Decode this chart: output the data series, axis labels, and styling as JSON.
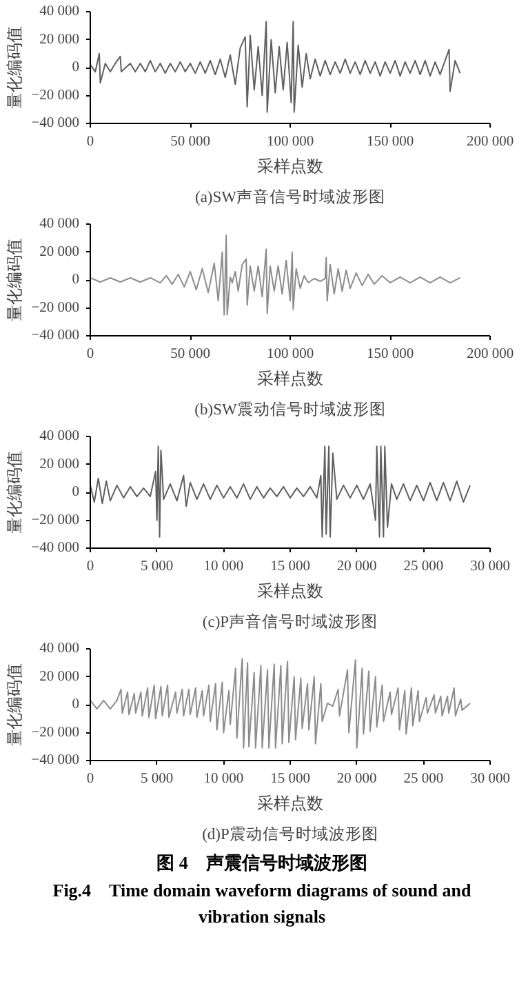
{
  "chart_data": [
    {
      "type": "line",
      "title": "(a)SW声音信号时域波形图",
      "xlabel": "采样点数",
      "ylabel": "量化编码值",
      "grid": false,
      "xlim": [
        0,
        200000
      ],
      "xticks": [
        0,
        {
          "value": 50000,
          "label": "50 000"
        },
        {
          "value": 100000,
          "label": "100 000"
        },
        {
          "value": 150000,
          "label": "150 000"
        },
        {
          "value": 200000,
          "label": "200 000"
        }
      ],
      "ylim": [
        -40000,
        40000
      ],
      "yticks": [
        {
          "value": -40000,
          "label": "−40 000"
        },
        {
          "value": -20000,
          "label": "−20 000"
        },
        0,
        {
          "value": 20000,
          "label": "20 000"
        },
        {
          "value": 40000,
          "label": "40 000"
        }
      ],
      "series": [
        {
          "color": "#5f5f5f",
          "x": [
            0,
            2500,
            4500,
            5000,
            7500,
            10000,
            12500,
            15000,
            15500,
            20000,
            22500,
            25000,
            27500,
            30000,
            32500,
            35000,
            37500,
            40000,
            42500,
            45000,
            47500,
            50000,
            52500,
            55000,
            57500,
            60000,
            62500,
            65000,
            67500,
            70000,
            72500,
            75000,
            77500,
            78500,
            80000,
            82000,
            84000,
            86000,
            88000,
            88500,
            90500,
            92500,
            94500,
            96500,
            98500,
            100500,
            101500,
            102000,
            104000,
            106000,
            108000,
            110000,
            112500,
            115000,
            117500,
            120000,
            122500,
            125000,
            127500,
            130000,
            132500,
            135000,
            137500,
            140000,
            142500,
            145000,
            147500,
            150000,
            152500,
            155000,
            157500,
            160000,
            162500,
            165000,
            167500,
            170000,
            172500,
            175000,
            177500,
            179500,
            180000,
            182500,
            185000
          ],
          "values": [
            2000,
            -3000,
            10000,
            -11000,
            3000,
            -3000,
            3000,
            8000,
            -3000,
            3000,
            -3000,
            3000,
            -3000,
            5000,
            -3000,
            3000,
            -4000,
            3000,
            -3000,
            4000,
            -3000,
            3000,
            -4000,
            4000,
            -4000,
            5000,
            -5000,
            6000,
            -7000,
            9000,
            -12000,
            14000,
            22000,
            -28000,
            23000,
            -16000,
            15000,
            -20000,
            33000,
            -32000,
            20000,
            -18000,
            15000,
            -16000,
            18000,
            -25000,
            33000,
            -32000,
            16000,
            -14000,
            10000,
            -8000,
            6000,
            -6000,
            5000,
            -5000,
            4000,
            -4000,
            6000,
            -4000,
            4000,
            -5000,
            5000,
            -4000,
            4000,
            -6000,
            4000,
            -4000,
            5000,
            -6000,
            4000,
            -4000,
            5000,
            -5000,
            5000,
            -6000,
            4000,
            -5000,
            5000,
            13000,
            -17000,
            5000,
            -4000
          ]
        }
      ]
    },
    {
      "type": "line",
      "title": "(b)SW震动信号时域波形图",
      "xlabel": "采样点数",
      "ylabel": "量化编码值",
      "grid": false,
      "xlim": [
        0,
        200000
      ],
      "xticks": [
        0,
        {
          "value": 50000,
          "label": "50 000"
        },
        {
          "value": 100000,
          "label": "100 000"
        },
        {
          "value": 150000,
          "label": "150 000"
        },
        {
          "value": 200000,
          "label": "200 000"
        }
      ],
      "ylim": [
        -40000,
        40000
      ],
      "yticks": [
        {
          "value": -40000,
          "label": "−40 000"
        },
        {
          "value": -20000,
          "label": "−20 000"
        },
        0,
        {
          "value": 20000,
          "label": "20 000"
        },
        {
          "value": 40000,
          "label": "40 000"
        }
      ],
      "series": [
        {
          "color": "#8c8c8c",
          "x": [
            0,
            5000,
            10000,
            15000,
            20000,
            25000,
            30000,
            35000,
            38000,
            41000,
            44000,
            47000,
            50000,
            53000,
            56000,
            59000,
            62000,
            64000,
            66000,
            67000,
            68000,
            68500,
            70000,
            71000,
            72500,
            74000,
            76000,
            78000,
            78500,
            80000,
            82000,
            84000,
            86000,
            88000,
            88500,
            90000,
            92000,
            94000,
            96000,
            98000,
            100000,
            101000,
            101500,
            103000,
            105000,
            107000,
            109000,
            112000,
            115000,
            117500,
            118000,
            118500,
            120000,
            122000,
            124000,
            126000,
            128000,
            130000,
            133000,
            136000,
            139000,
            142000,
            146000,
            150000,
            155000,
            160000,
            165000,
            170000,
            175000,
            180000,
            185000
          ],
          "values": [
            1500,
            -1500,
            1500,
            -1500,
            1500,
            -1500,
            1500,
            -2000,
            3000,
            -3000,
            4000,
            -5000,
            6000,
            -7000,
            8000,
            -9000,
            12000,
            -15000,
            20000,
            -25000,
            32000,
            -25000,
            2000,
            -2000,
            6000,
            -8000,
            11000,
            15000,
            -18000,
            10000,
            -8000,
            10000,
            -12000,
            22000,
            -24000,
            10000,
            -8000,
            10000,
            -10000,
            14000,
            -15000,
            20000,
            -21000,
            8000,
            -6000,
            3000,
            -2000,
            1000,
            -1000,
            1000,
            16000,
            -15000,
            11000,
            -10000,
            8000,
            -8000,
            7000,
            -6000,
            5000,
            -4000,
            4000,
            -3000,
            3000,
            -2000,
            2000,
            -2000,
            2000,
            -2000,
            2000,
            -2000,
            1500
          ]
        }
      ]
    },
    {
      "type": "line",
      "title": "(c)P声音信号时域波形图",
      "xlabel": "采样点数",
      "ylabel": "量化编码值",
      "grid": false,
      "xlim": [
        0,
        30000
      ],
      "xticks": [
        0,
        {
          "value": 5000,
          "label": "5 000"
        },
        {
          "value": 10000,
          "label": "10 000"
        },
        {
          "value": 15000,
          "label": "15 000"
        },
        {
          "value": 20000,
          "label": "20 000"
        },
        {
          "value": 25000,
          "label": "25 000"
        },
        {
          "value": 30000,
          "label": "30 000"
        }
      ],
      "ylim": [
        -40000,
        40000
      ],
      "yticks": [
        {
          "value": -40000,
          "label": "−40 000"
        },
        {
          "value": -20000,
          "label": "−20 000"
        },
        0,
        {
          "value": 20000,
          "label": "20 000"
        },
        {
          "value": 40000,
          "label": "40 000"
        }
      ],
      "series": [
        {
          "color": "#5f5f5f",
          "x": [
            0,
            300,
            600,
            900,
            1200,
            1500,
            2000,
            2500,
            3000,
            3500,
            4000,
            4500,
            4900,
            5000,
            5100,
            5200,
            5300,
            5500,
            6000,
            6500,
            7000,
            7200,
            7500,
            8000,
            8500,
            9000,
            9500,
            10000,
            10500,
            11000,
            11500,
            12000,
            12500,
            13000,
            13500,
            14000,
            14500,
            15000,
            15500,
            16000,
            16500,
            17000,
            17300,
            17400,
            17600,
            17700,
            17900,
            18000,
            18200,
            18500,
            19000,
            19500,
            20000,
            20500,
            21000,
            21400,
            21500,
            21700,
            21800,
            22000,
            22100,
            22300,
            22600,
            23000,
            23500,
            24000,
            24500,
            25000,
            25500,
            26000,
            26500,
            27000,
            27500,
            28000,
            28500
          ],
          "values": [
            5000,
            -7000,
            10000,
            -8000,
            8000,
            -6000,
            5000,
            -4000,
            4000,
            -3000,
            3000,
            -3000,
            15000,
            -20000,
            33000,
            -32000,
            30000,
            -5000,
            6000,
            -6000,
            12000,
            -10000,
            7000,
            -5000,
            6000,
            -5000,
            5000,
            -4000,
            4000,
            -4000,
            6000,
            -5000,
            4000,
            -4000,
            3000,
            -3000,
            4000,
            -4000,
            3000,
            -3000,
            4000,
            -4000,
            12000,
            -32000,
            33000,
            -30000,
            33000,
            -32000,
            28000,
            -5000,
            5000,
            -4000,
            5000,
            -5000,
            6000,
            -20000,
            33000,
            -32000,
            33000,
            -32000,
            33000,
            -25000,
            6000,
            -5000,
            6000,
            -6000,
            5000,
            -6000,
            7000,
            -6000,
            7000,
            -6000,
            8000,
            -7000,
            5000
          ]
        }
      ]
    },
    {
      "type": "line",
      "title": "(d)P震动信号时域波形图",
      "xlabel": "采样点数",
      "ylabel": "量化编码值",
      "grid": false,
      "annotations": [
        "图 4　声震信号时域波形图",
        "Fig.4　Time domain waveform diagrams of sound and vibration signals"
      ],
      "xlim": [
        0,
        30000
      ],
      "xticks": [
        0,
        {
          "value": 5000,
          "label": "5 000"
        },
        {
          "value": 10000,
          "label": "10 000"
        },
        {
          "value": 15000,
          "label": "15 000"
        },
        {
          "value": 20000,
          "label": "20 000"
        },
        {
          "value": 25000,
          "label": "25 000"
        },
        {
          "value": 30000,
          "label": "30 000"
        }
      ],
      "ylim": [
        -40000,
        40000
      ],
      "yticks": [
        {
          "value": -40000,
          "label": "−40 000"
        },
        {
          "value": -20000,
          "label": "−20 000"
        },
        0,
        {
          "value": 20000,
          "label": "20 000"
        },
        {
          "value": 40000,
          "label": "40 000"
        }
      ],
      "series": [
        {
          "color": "#8c8c8c",
          "x": [
            0,
            500,
            1000,
            1500,
            2000,
            2300,
            2400,
            2800,
            2900,
            3300,
            3400,
            3800,
            3900,
            4300,
            4400,
            4800,
            4900,
            5300,
            5400,
            5800,
            5900,
            6400,
            6500,
            6900,
            7000,
            7400,
            7500,
            7900,
            8000,
            8400,
            8500,
            8900,
            9000,
            9400,
            9500,
            9900,
            10000,
            10400,
            10500,
            10900,
            11000,
            11400,
            11500,
            11800,
            11900,
            12300,
            12400,
            12800,
            12900,
            13300,
            13400,
            13800,
            13900,
            14300,
            14400,
            14800,
            14900,
            15300,
            15400,
            15800,
            15900,
            16300,
            16400,
            16800,
            16900,
            17300,
            17400,
            17800,
            18200,
            18600,
            18700,
            19300,
            19400,
            19900,
            20000,
            20400,
            20500,
            20900,
            21000,
            21400,
            21500,
            21900,
            22000,
            22500,
            22600,
            23100,
            23200,
            23600,
            23700,
            24100,
            24200,
            24600,
            24700,
            25200,
            25300,
            25800,
            25900,
            26300,
            26400,
            26800,
            26900,
            27300,
            27400,
            27800,
            27900,
            28500
          ],
          "values": [
            3000,
            -3000,
            3000,
            -3000,
            3000,
            11000,
            -6000,
            9000,
            -7000,
            8000,
            -6000,
            9000,
            -8000,
            12000,
            -9000,
            14000,
            -10000,
            13000,
            -8000,
            14000,
            -9000,
            9000,
            -6000,
            11000,
            -8000,
            11000,
            -7000,
            12000,
            -9000,
            10000,
            -8000,
            14000,
            -12000,
            15000,
            -18000,
            16000,
            -20000,
            10000,
            -14000,
            26000,
            -24000,
            33000,
            -31000,
            30000,
            -30000,
            23000,
            -31000,
            28000,
            -31000,
            25000,
            -31000,
            29000,
            -31000,
            28000,
            -28000,
            31000,
            -27000,
            20000,
            -25000,
            19000,
            -17000,
            15000,
            -18000,
            20000,
            -28000,
            15000,
            -12000,
            1000,
            -1000,
            11000,
            -8000,
            25000,
            -20000,
            32000,
            -31000,
            26000,
            -21000,
            24000,
            -19000,
            20000,
            -16000,
            14000,
            -12000,
            9000,
            -7000,
            12000,
            -18000,
            10000,
            -21000,
            12000,
            -15000,
            10000,
            -12000,
            5000,
            -6000,
            7000,
            -6000,
            6000,
            -8000,
            6000,
            -6000,
            12000,
            -8000,
            4000,
            -4000,
            1000
          ]
        }
      ]
    }
  ]
}
